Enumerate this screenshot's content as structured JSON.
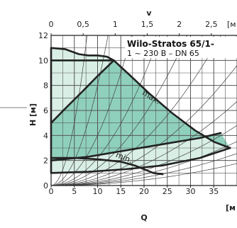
{
  "chart_data": {
    "type": "line",
    "title": "Wilo-Stratos 65/1-",
    "subtitle": "1 ~ 230 B – DN 65",
    "xlabel": "Q",
    "x_unit": "[м",
    "ylabel": "H [м]",
    "top_axis_label": "v",
    "top_axis_unit": "[м",
    "xlim": [
      0,
      40
    ],
    "ylim": [
      0,
      12
    ],
    "x_ticks": [
      "0",
      "5",
      "10",
      "15",
      "20",
      "25",
      "30",
      "35"
    ],
    "y_ticks": [
      "0",
      "2",
      "4",
      "6",
      "8",
      "10",
      "12"
    ],
    "top_ticks": [
      "0",
      "0,5",
      "1",
      "1,5",
      "2",
      "2,5"
    ],
    "grid": true,
    "colors": {
      "grid": "#555555",
      "curve": "#222222",
      "fill_outer": "#d9efe6",
      "fill_inner": "#8fd0bc",
      "pointer": "#aaaaaa"
    },
    "annotations": [
      {
        "text": "max.",
        "x": 19.5,
        "y": 7.3
      },
      {
        "text": "min.",
        "x": 13.8,
        "y": 2.3
      }
    ],
    "series": [
      {
        "name": "max.",
        "x": [
          0,
          3,
          6,
          8,
          10,
          12,
          13.5,
          17,
          21,
          26,
          31,
          35,
          38.5
        ],
        "y": [
          11,
          10.9,
          10.5,
          10.4,
          10.4,
          10.3,
          10,
          8.8,
          7.4,
          5.8,
          4.4,
          3.5,
          3
        ]
      },
      {
        "name": "min.",
        "x": [
          0,
          5,
          10,
          15,
          18,
          20,
          22,
          24
        ],
        "y": [
          2.2,
          2.2,
          2.1,
          1.9,
          1.6,
          1.3,
          1,
          0.9
        ]
      },
      {
        "name": "",
        "x": [
          0,
          5,
          10,
          13.5
        ],
        "y": [
          10,
          10,
          10,
          10
        ]
      },
      {
        "name": "",
        "x": [
          0,
          3.3,
          6.7,
          10,
          13.5
        ],
        "y": [
          5,
          6.25,
          7.5,
          8.75,
          10
        ]
      },
      {
        "name": "",
        "x": [
          0,
          8,
          16,
          24,
          32,
          36.5
        ],
        "y": [
          2,
          2.3,
          2.8,
          3.3,
          3.8,
          4.2
        ]
      },
      {
        "name": "",
        "x": [
          0,
          8,
          16,
          24,
          32,
          38.5
        ],
        "y": [
          1,
          1.1,
          1.3,
          1.6,
          2.2,
          3
        ]
      }
    ]
  }
}
